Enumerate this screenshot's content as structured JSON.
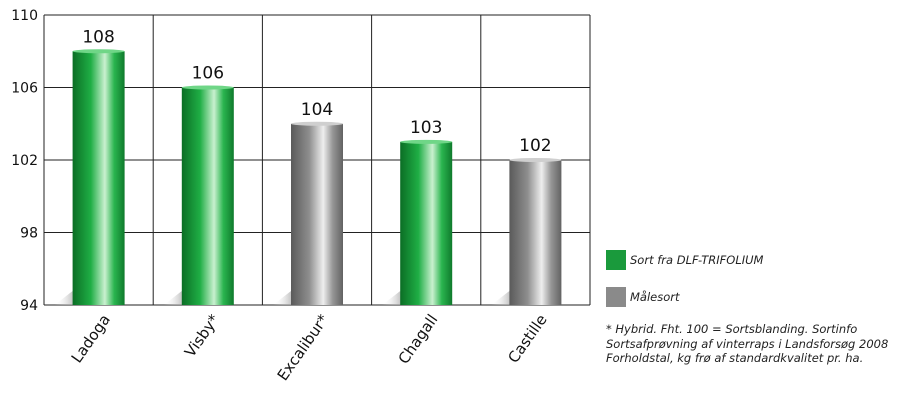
{
  "chart_data": {
    "type": "bar",
    "categories": [
      "Ladoga",
      "Visby*",
      "Excalibur*",
      "Chagall",
      "Castille"
    ],
    "values": [
      108,
      106,
      104,
      103,
      102
    ],
    "value_labels": [
      "108",
      "106",
      "104",
      "103",
      "102"
    ],
    "bar_groups": [
      "dlf",
      "dlf",
      "maal",
      "dlf",
      "maal"
    ],
    "ylim": [
      94,
      110
    ],
    "yticks": [
      94,
      98,
      102,
      106,
      110
    ],
    "grid": true,
    "legend_position": "right",
    "colors": {
      "dlf": "#1a9a3c",
      "maal": "#8a8a8a"
    }
  },
  "legend": {
    "items": [
      {
        "key": "dlf",
        "label": "Sort fra DLF-TRIFOLIUM",
        "color": "#1a9a3c"
      },
      {
        "key": "maal",
        "label": "Målesort",
        "color": "#8a8a8a"
      }
    ]
  },
  "note": {
    "lines": [
      "* Hybrid. Fht. 100 = Sortsblanding. Sortinfo",
      "Sortsafprøvning af vinterraps i Landsforsøg 2008",
      "Forholdstal, kg frø af standardkvalitet pr. ha."
    ]
  }
}
